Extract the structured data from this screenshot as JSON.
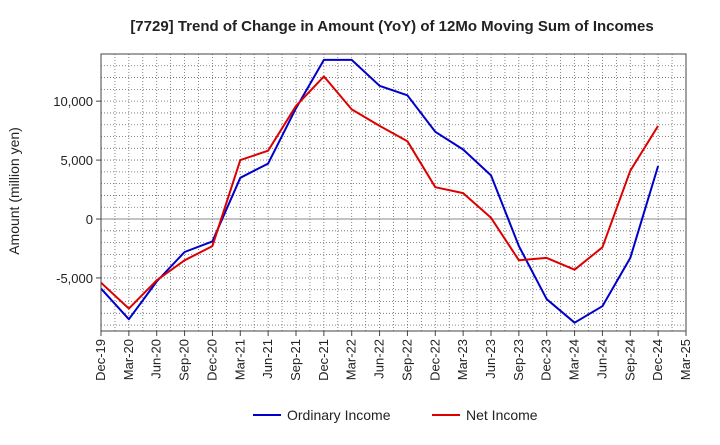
{
  "chart_data": {
    "type": "line",
    "title": "[7729]  Trend of Change in Amount (YoY) of 12Mo Moving Sum of Incomes",
    "xlabel": "",
    "ylabel": "Amount (million yen)",
    "categories": [
      "Dec-19",
      "Mar-20",
      "Jun-20",
      "Sep-20",
      "Dec-20",
      "Mar-21",
      "Jun-21",
      "Sep-21",
      "Dec-21",
      "Mar-22",
      "Jun-22",
      "Sep-22",
      "Dec-22",
      "Mar-23",
      "Jun-23",
      "Sep-23",
      "Dec-23",
      "Mar-24",
      "Jun-24",
      "Sep-24",
      "Dec-24",
      "Mar-25"
    ],
    "ylim": [
      -9500,
      14000
    ],
    "yticks": [
      -5000,
      0,
      5000,
      10000
    ],
    "ytick_labels": [
      "-5,000",
      "0",
      "5,000",
      "10,000"
    ],
    "grid": true,
    "legend_position": "bottom-center",
    "series": [
      {
        "name": "Ordinary Income",
        "color": "#0000cc",
        "values": [
          -5900,
          -8500,
          -5300,
          -2800,
          -1900,
          3500,
          4700,
          9400,
          13500,
          13500,
          11300,
          10500,
          7400,
          5900,
          3700,
          -2300,
          -6800,
          -8800,
          -7400,
          -3300,
          4500,
          null
        ]
      },
      {
        "name": "Net Income",
        "color": "#dd0000",
        "values": [
          -5400,
          -7600,
          -5200,
          -3500,
          -2300,
          5000,
          5800,
          9600,
          12100,
          9300,
          7900,
          6600,
          2700,
          2200,
          100,
          -3500,
          -3300,
          -4300,
          -2400,
          4100,
          7900,
          null
        ]
      }
    ]
  }
}
